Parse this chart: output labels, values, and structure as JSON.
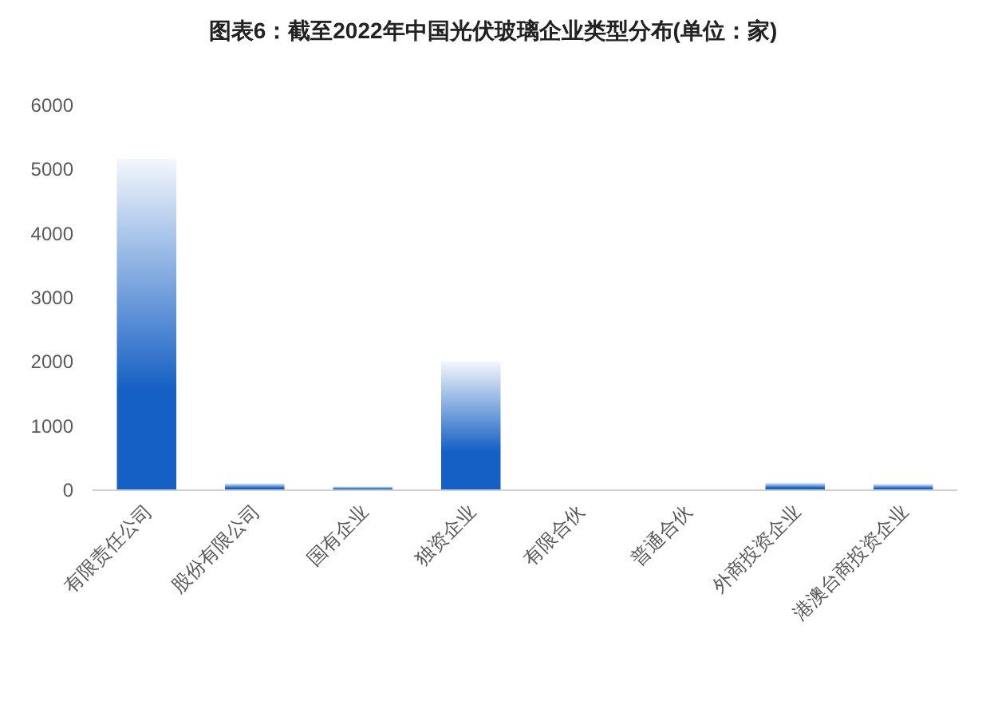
{
  "chart_data": {
    "type": "bar",
    "title": "图表6：截至2022年中国光伏玻璃企业类型分布(单位：家)",
    "categories": [
      "有限责任公司",
      "股份有限公司",
      "国有企业",
      "独资企业",
      "有限合伙",
      "普通合伙",
      "外商投资企业",
      "港澳台商投资企业"
    ],
    "values": [
      5170,
      110,
      60,
      2010,
      0,
      0,
      120,
      100
    ],
    "color": "#1560c4",
    "ylim": [
      0,
      6000
    ],
    "yticks": [
      0,
      1000,
      2000,
      3000,
      4000,
      5000,
      6000
    ],
    "grid": false
  }
}
